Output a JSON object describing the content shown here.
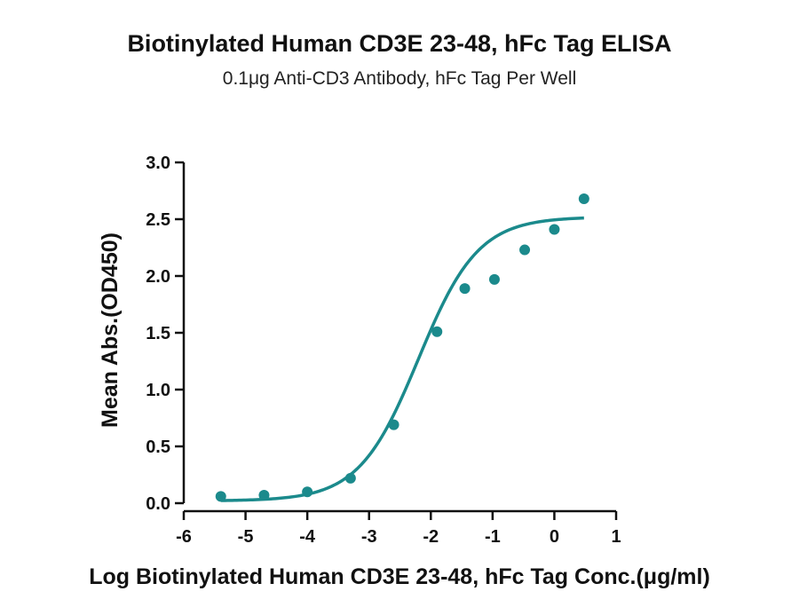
{
  "chart_data": {
    "type": "scatter",
    "title": "Biotinylated Human CD3E 23-48, hFc Tag ELISA",
    "subtitle": "0.1μg Anti-CD3 Antibody, hFc Tag Per Well",
    "xlabel": "Log Biotinylated Human CD3E 23-48, hFc Tag Conc.(μg/ml)",
    "ylabel": "Mean Abs.(OD450)",
    "xlim": [
      -6,
      1
    ],
    "ylim": [
      0,
      3
    ],
    "xticks": [
      -6,
      -5,
      -4,
      -3,
      -2,
      -1,
      0,
      1
    ],
    "yticks": [
      0.0,
      0.5,
      1.0,
      1.5,
      2.0,
      2.5,
      3.0
    ],
    "xtick_labels": [
      "-6",
      "-5",
      "-4",
      "-3",
      "-2",
      "-1",
      "0",
      "1"
    ],
    "ytick_labels": [
      "0.0",
      "0.5",
      "1.0",
      "1.5",
      "2.0",
      "2.5",
      "3.0"
    ],
    "grid": false,
    "color": "#1b8a8c",
    "series": [
      {
        "x": [
          -5.4,
          -4.7,
          -4.0,
          -3.3,
          -2.6,
          -1.9,
          -1.45,
          -0.97,
          -0.48,
          0.0,
          0.48
        ],
        "y": [
          0.06,
          0.07,
          0.1,
          0.22,
          0.69,
          1.51,
          1.89,
          1.97,
          2.23,
          2.41,
          2.68
        ]
      }
    ],
    "fit": {
      "type": "4PL",
      "x_range": [
        -5.4,
        0.48
      ],
      "bottom": 0.02,
      "top": 2.52,
      "log_ec50": -2.2,
      "hill": 0.9
    }
  }
}
